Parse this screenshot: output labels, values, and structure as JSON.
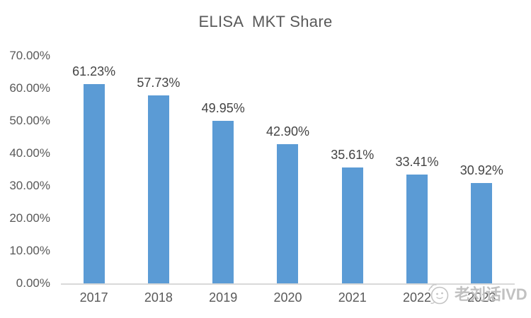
{
  "chart_data": {
    "type": "bar",
    "title": "ELISA  MKT Share",
    "categories": [
      "2017",
      "2018",
      "2019",
      "2020",
      "2021",
      "2022",
      "2023"
    ],
    "values": [
      61.23,
      57.73,
      49.95,
      42.9,
      35.61,
      33.41,
      30.92
    ],
    "data_labels": [
      "61.23%",
      "57.73%",
      "49.95%",
      "42.90%",
      "35.61%",
      "33.41%",
      "30.92%"
    ],
    "xlabel": "",
    "ylabel": "",
    "ylim": [
      0,
      70
    ],
    "ytick_step": 10,
    "ytick_labels": [
      "0.00%",
      "10.00%",
      "20.00%",
      "30.00%",
      "40.00%",
      "50.00%",
      "60.00%",
      "70.00%"
    ],
    "grid": false,
    "legend": false,
    "bar_color": "#5B9BD5"
  },
  "watermark": {
    "text": "老刘话IVD",
    "icon": "chat-face-icon"
  },
  "colors": {
    "bar": "#5B9BD5",
    "title_text": "#595959",
    "axis_label_text": "#595959",
    "data_label_text": "#444444",
    "axis_line": "#D9D9D9",
    "watermark_text": "#BEBEBE",
    "background": "#FFFFFF"
  }
}
